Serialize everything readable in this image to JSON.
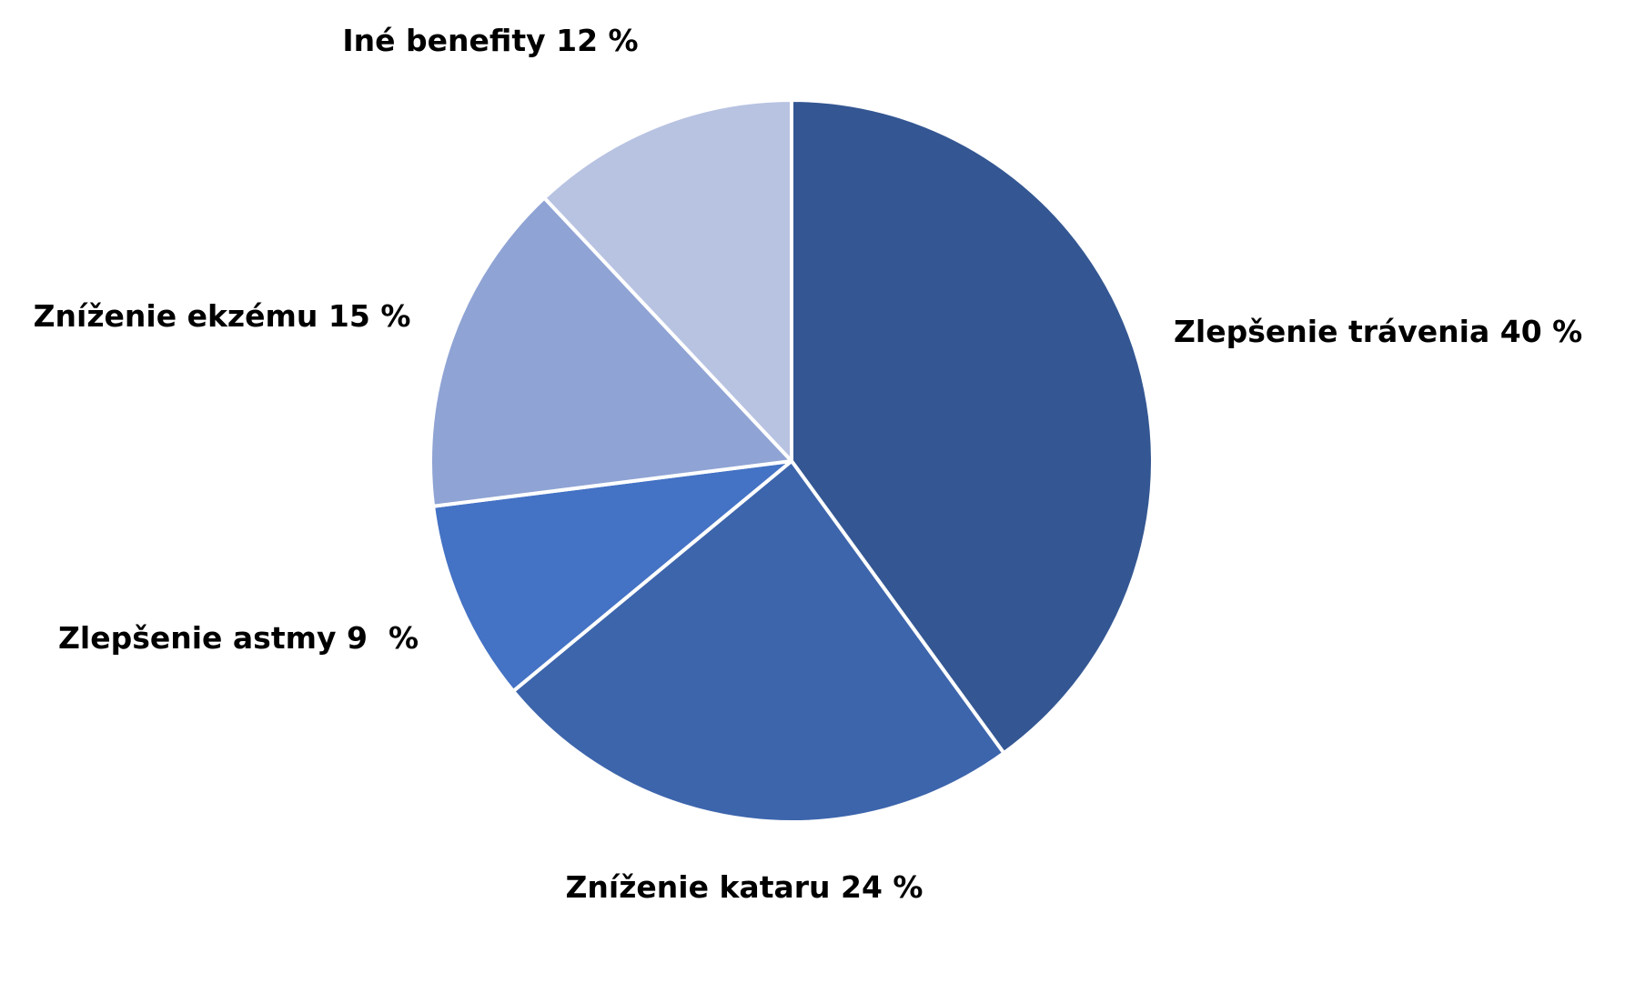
{
  "chart_data": {
    "type": "pie",
    "categories": [
      "Zlepšenie trávenia",
      "Zníženie kataru",
      "Zlepšenie astmy",
      "Zníženie ekzému",
      "Iné benefity"
    ],
    "values": [
      40,
      24,
      9,
      15,
      12
    ],
    "value_labels": [
      "40 %",
      "24 %",
      "9  %",
      "15 %",
      "12 %"
    ],
    "colors": [
      "#345793",
      "#3d65ac",
      "#4472c4",
      "#8fa3d4",
      "#b8c3e2"
    ]
  }
}
